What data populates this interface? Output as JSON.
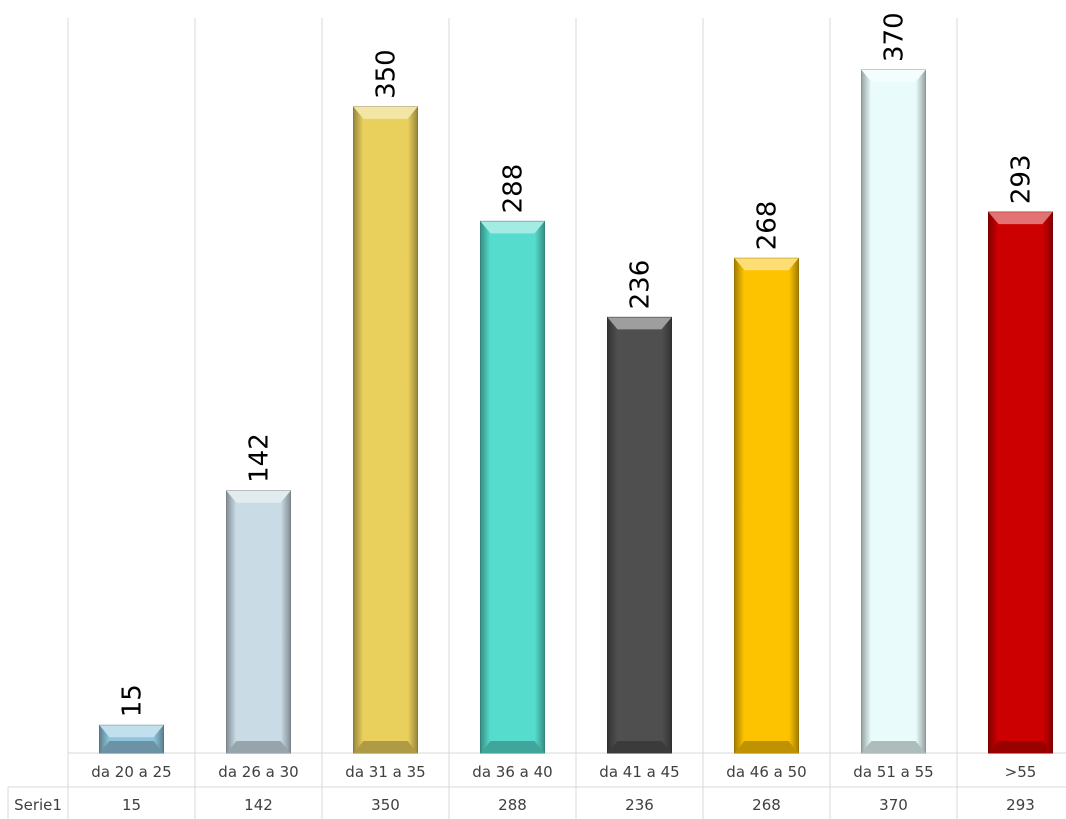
{
  "chart_data": {
    "type": "bar",
    "title": "",
    "xlabel": "",
    "ylabel": "",
    "ylim": [
      0,
      380
    ],
    "grid": true,
    "legend": "data-table",
    "categories": [
      "da 20 a 25",
      "da 26 a 30",
      "da 31 a 35",
      "da 36 a 40",
      "da 41 a 45",
      "da 46 a 50",
      "da 51 a 55",
      ">55"
    ],
    "series": [
      {
        "name": "Serie1",
        "values": [
          15,
          142,
          350,
          288,
          236,
          268,
          370,
          293
        ],
        "colors": [
          "#8fc4dc",
          "#c9dbe4",
          "#e9cf5c",
          "#55dccd",
          "#4f4f4f",
          "#fdc300",
          "#e9fbfb",
          "#cc0000"
        ]
      }
    ]
  }
}
